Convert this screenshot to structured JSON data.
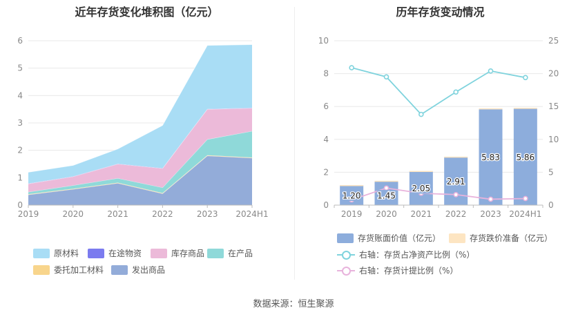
{
  "left_chart": {
    "title": "近年存货变化堆积图（亿元）",
    "legend": [
      {
        "label": "原材料",
        "color": "#a9ddf5"
      },
      {
        "label": "在途物资",
        "color": "#7b7bef"
      },
      {
        "label": "库存商品",
        "color": "#ecbad9"
      },
      {
        "label": "在产品",
        "color": "#8fd9d9"
      },
      {
        "label": "委托加工材料",
        "color": "#f8d58c"
      },
      {
        "label": "发出商品",
        "color": "#93acd9"
      }
    ]
  },
  "right_chart": {
    "title": "历年存货变动情况",
    "legend": [
      {
        "label": "存货账面价值（亿元）",
        "color": "#8daddc"
      },
      {
        "label": "存货跌价准备（亿元）",
        "color": "#fde5c2"
      },
      {
        "label": "右轴：存货占净资产比例（%）",
        "color": "#7fd3dd"
      },
      {
        "label": "右轴：存货计提比例（%）",
        "color": "#e8b3dc"
      }
    ]
  },
  "source": "数据来源：恒生聚源",
  "chart_data": [
    {
      "type": "area",
      "stacked": true,
      "title": "近年存货变化堆积图（亿元）",
      "x": [
        "2019",
        "2020",
        "2021",
        "2022",
        "2023",
        "2024H1"
      ],
      "ylim": [
        0,
        6
      ],
      "yticks": [
        0,
        1,
        2,
        3,
        4,
        5,
        6
      ],
      "grid": true,
      "legend_position": "bottom",
      "series": [
        {
          "name": "发出商品",
          "color": "#93acd9",
          "values": [
            0.38,
            0.58,
            0.8,
            0.42,
            1.8,
            1.72
          ]
        },
        {
          "name": "委托加工材料",
          "color": "#f8d58c",
          "values": [
            0.02,
            0.02,
            0.02,
            0.02,
            0.02,
            0.02
          ]
        },
        {
          "name": "在产品",
          "color": "#8fd9d9",
          "values": [
            0.08,
            0.12,
            0.16,
            0.2,
            0.58,
            0.96
          ]
        },
        {
          "name": "库存商品",
          "color": "#ecbad9",
          "values": [
            0.3,
            0.32,
            0.52,
            0.7,
            1.1,
            0.84
          ]
        },
        {
          "name": "在途物资",
          "color": "#7b7bef",
          "values": [
            0.01,
            0.01,
            0.01,
            0.01,
            0.01,
            0.01
          ]
        },
        {
          "name": "原材料",
          "color": "#a9ddf5",
          "values": [
            0.41,
            0.4,
            0.54,
            1.56,
            2.32,
            2.31
          ]
        }
      ]
    },
    {
      "type": "bar",
      "title": "历年存货变动情况",
      "categories": [
        "2019",
        "2020",
        "2021",
        "2022",
        "2023",
        "2024H1"
      ],
      "ylim": [
        0,
        10
      ],
      "yticks": [
        0,
        2,
        4,
        6,
        8,
        10
      ],
      "y2lim": [
        0,
        25
      ],
      "y2ticks": [
        0,
        5,
        10,
        15,
        20,
        25
      ],
      "grid": true,
      "legend_position": "bottom",
      "series": [
        {
          "name": "存货账面价值（亿元）",
          "axis": "left",
          "kind": "bar",
          "color": "#8daddc",
          "values": [
            1.2,
            1.45,
            2.05,
            2.91,
            5.83,
            5.86
          ],
          "labels": [
            "1.20",
            "1.45",
            "2.05",
            "2.91",
            "5.83",
            "5.86"
          ]
        },
        {
          "name": "存货跌价准备（亿元）",
          "axis": "left",
          "kind": "bar-stack",
          "color": "#fde5c2",
          "values": [
            0.02,
            0.03,
            0.03,
            0.04,
            0.06,
            0.06
          ]
        },
        {
          "name": "右轴：存货占净资产比例（%）",
          "axis": "right",
          "kind": "line",
          "color": "#7fd3dd",
          "values": [
            20.9,
            19.5,
            13.8,
            17.2,
            20.4,
            19.4
          ]
        },
        {
          "name": "右轴：存货计提比例（%）",
          "axis": "right",
          "kind": "line",
          "color": "#e8b3dc",
          "values": [
            0.8,
            2.6,
            1.8,
            1.6,
            0.9,
            1.0
          ]
        }
      ]
    }
  ]
}
